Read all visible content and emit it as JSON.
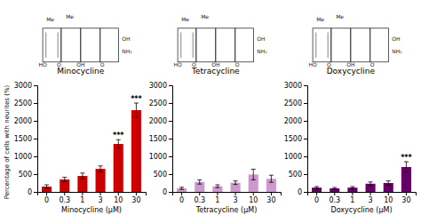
{
  "chart_data": [
    {
      "type": "bar",
      "title": "Minocycline",
      "xlabel": "Minocycline (μM)",
      "ylabel": "Percentage of cells with neurites  (%)",
      "categories": [
        "0",
        "0.3",
        "1",
        "3",
        "10",
        "30"
      ],
      "values": [
        150,
        350,
        450,
        650,
        1350,
        2300
      ],
      "errors": [
        50,
        60,
        80,
        80,
        120,
        200
      ],
      "color": "#CC0000",
      "ylim": [
        0,
        3000
      ],
      "yticks": [
        0,
        500,
        1000,
        1500,
        2000,
        2500,
        3000
      ],
      "grid": false,
      "annotations": [
        {
          "text": "Me"
        },
        {
          "text": "Me"
        },
        {
          "text": "HO"
        },
        {
          "text": "O"
        },
        {
          "text": "OH"
        },
        {
          "text": "O"
        },
        {
          "text": "OH"
        },
        {
          "text": "NH₂"
        },
        {
          "category": "10",
          "text": "***"
        },
        {
          "category": "30",
          "text": "***"
        }
      ]
    },
    {
      "type": "bar",
      "title": "Tetracycline",
      "xlabel": "Tetracycline  (μM)",
      "categories": [
        "0",
        "0.3",
        "1",
        "3",
        "10",
        "30"
      ],
      "values": [
        100,
        280,
        160,
        260,
        490,
        370
      ],
      "errors": [
        30,
        60,
        40,
        50,
        150,
        100
      ],
      "color": "#CC99CC",
      "ylim": [
        0,
        3000
      ],
      "yticks": [
        0,
        500,
        1000,
        1500,
        2000,
        2500,
        3000
      ],
      "grid": false,
      "annotations": [
        {
          "text": "Me"
        },
        {
          "text": "Me"
        },
        {
          "text": "HO"
        },
        {
          "text": "O"
        },
        {
          "text": "OH"
        },
        {
          "text": "O"
        },
        {
          "text": "OH"
        },
        {
          "text": "NH₂"
        }
      ]
    },
    {
      "type": "bar",
      "title": "Doxycycline",
      "xlabel": "Doxycycline (μM)",
      "categories": [
        "0",
        "0.3",
        "1",
        "3",
        "10",
        "30"
      ],
      "values": [
        120,
        100,
        120,
        230,
        250,
        700
      ],
      "errors": [
        30,
        25,
        30,
        50,
        60,
        150
      ],
      "color": "#660066",
      "ylim": [
        0,
        3000
      ],
      "yticks": [
        0,
        500,
        1000,
        1500,
        2000,
        2500,
        3000
      ],
      "grid": false,
      "annotations": [
        {
          "text": "Me"
        },
        {
          "text": "Me"
        },
        {
          "text": "HO"
        },
        {
          "text": "O"
        },
        {
          "text": "OH"
        },
        {
          "text": "O"
        },
        {
          "text": "OH"
        },
        {
          "text": "NH₂"
        },
        {
          "category": "30",
          "text": "***"
        }
      ]
    }
  ]
}
